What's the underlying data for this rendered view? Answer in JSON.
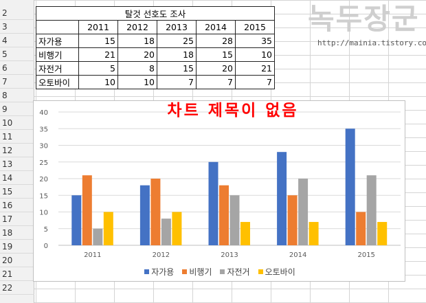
{
  "sheet": {
    "row_numbers": [
      "2",
      "3",
      "4",
      "5",
      "6",
      "7",
      "8",
      "9",
      "10",
      "11",
      "12",
      "13",
      "14",
      "15",
      "16",
      "17",
      "18",
      "19",
      "20",
      "21",
      "22"
    ]
  },
  "table": {
    "title": "탈것 선호도 조사",
    "years": [
      "2011",
      "2012",
      "2013",
      "2014",
      "2015"
    ],
    "rows": [
      {
        "label": "자가용",
        "values": [
          "15",
          "18",
          "25",
          "28",
          "35"
        ]
      },
      {
        "label": "비행기",
        "values": [
          "21",
          "20",
          "18",
          "15",
          "10"
        ]
      },
      {
        "label": "자전거",
        "values": [
          "5",
          "8",
          "15",
          "20",
          "21"
        ]
      },
      {
        "label": "오토바이",
        "values": [
          "10",
          "10",
          "7",
          "7",
          "7"
        ]
      }
    ]
  },
  "logo": {
    "text": "녹두장군",
    "url": "http://mainia.tistory.com"
  },
  "chart_data": {
    "type": "bar",
    "title": "차트 제목이 없음",
    "categories": [
      "2011",
      "2012",
      "2013",
      "2014",
      "2015"
    ],
    "series": [
      {
        "name": "자가용",
        "color": "#4472c4",
        "values": [
          15,
          18,
          25,
          28,
          35
        ]
      },
      {
        "name": "비행기",
        "color": "#ed7d31",
        "values": [
          21,
          20,
          18,
          15,
          10
        ]
      },
      {
        "name": "자전거",
        "color": "#a5a5a5",
        "values": [
          5,
          8,
          15,
          20,
          21
        ]
      },
      {
        "name": "오토바이",
        "color": "#ffc000",
        "values": [
          10,
          10,
          7,
          7,
          7
        ]
      }
    ],
    "ylim": [
      0,
      40
    ],
    "yticks": [
      "0",
      "5",
      "10",
      "15",
      "20",
      "25",
      "30",
      "35",
      "40"
    ],
    "grid": true,
    "legend": "bottom"
  }
}
